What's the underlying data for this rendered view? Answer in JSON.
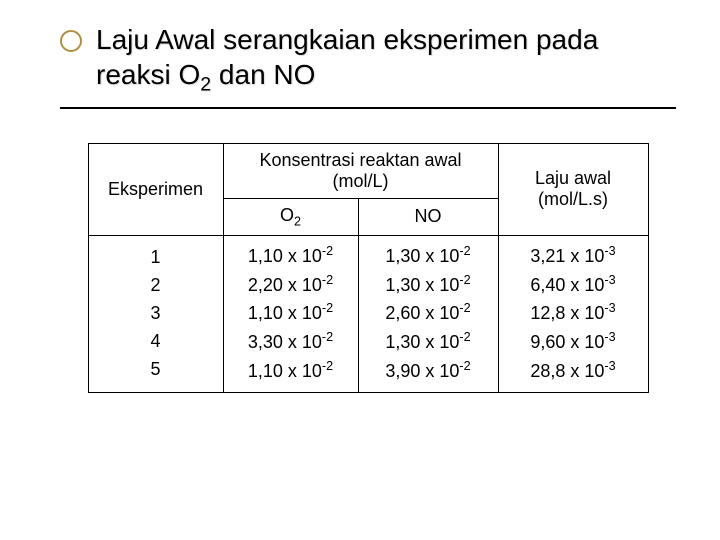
{
  "title_html": "Laju Awal serangkaian eksperimen pada reaksi O<sub>2</sub> dan NO",
  "table": {
    "type": "table",
    "header": {
      "experiment": "Eksperimen",
      "concentration_group": "Konsentrasi reaktan awal (mol/L)",
      "o2_html": "O<sub>2</sub>",
      "no": "NO",
      "rate": "Laju awal (mol/L.s)"
    },
    "experiments": [
      "1",
      "2",
      "3",
      "4",
      "5"
    ],
    "o2_html": [
      "1,10 x 10<sup>-2</sup>",
      "2,20 x 10<sup>-2</sup>",
      "1,10 x 10<sup>-2</sup>",
      "3,30 x 10<sup>-2</sup>",
      "1,10 x 10<sup>-2</sup>"
    ],
    "no_html": [
      "1,30 x 10<sup>-2</sup>",
      "1,30 x 10<sup>-2</sup>",
      "2,60 x 10<sup>-2</sup>",
      "1,30 x 10<sup>-2</sup>",
      "3,90 x 10<sup>-2</sup>"
    ],
    "rate_html": [
      "3,21 x 10<sup>-3</sup>",
      "6,40 x 10<sup>-3</sup>",
      "12,8 x 10<sup>-3</sup>",
      "9,60 x 10<sup>-3</sup>",
      "28,8 x 10<sup>-3</sup>"
    ],
    "border_color": "#000000",
    "background_color": "#ffffff",
    "font_size_pt": 14
  },
  "colors": {
    "bullet_ring": "#b09040",
    "text": "#000000",
    "background": "#ffffff"
  }
}
